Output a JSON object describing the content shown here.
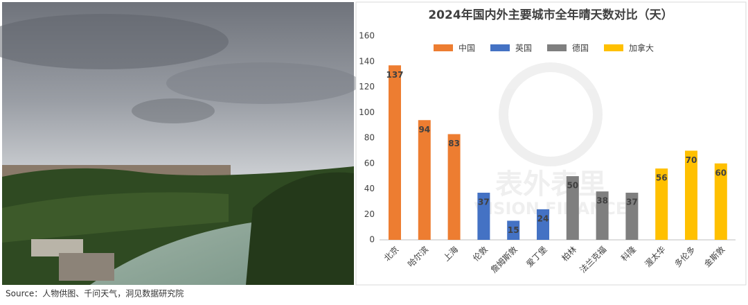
{
  "source": "Source：人物供图、千问天气，洞见数据研究院",
  "watermark": {
    "brand": "表外表里",
    "sub": "VISION FINANCE"
  },
  "chart_data": {
    "type": "bar",
    "title": "2024年国内外主要城市全年晴天数对比（天）",
    "categories": [
      "北京",
      "哈尔滨",
      "上海",
      "伦敦",
      "詹姆斯敦",
      "爱丁堡",
      "柏林",
      "法兰克福",
      "科隆",
      "渥太华",
      "多伦多",
      "金斯敦"
    ],
    "series": [
      {
        "name": "中国",
        "color": "#ed7d31",
        "values": [
          137,
          94,
          83,
          null,
          null,
          null,
          null,
          null,
          null,
          null,
          null,
          null
        ]
      },
      {
        "name": "英国",
        "color": "#4472c4",
        "values": [
          null,
          null,
          null,
          37,
          15,
          24,
          null,
          null,
          null,
          null,
          null,
          null
        ]
      },
      {
        "name": "德国",
        "color": "#7f7f7f",
        "values": [
          null,
          null,
          null,
          null,
          null,
          null,
          50,
          38,
          37,
          null,
          null,
          null
        ]
      },
      {
        "name": "加拿大",
        "color": "#ffc000",
        "values": [
          null,
          null,
          null,
          null,
          null,
          null,
          null,
          null,
          null,
          56,
          70,
          60
        ]
      }
    ],
    "ylim": [
      0,
      160
    ],
    "yticks": [
      0,
      20,
      40,
      60,
      80,
      100,
      120,
      140,
      160
    ],
    "grid": false,
    "legend": "top"
  }
}
